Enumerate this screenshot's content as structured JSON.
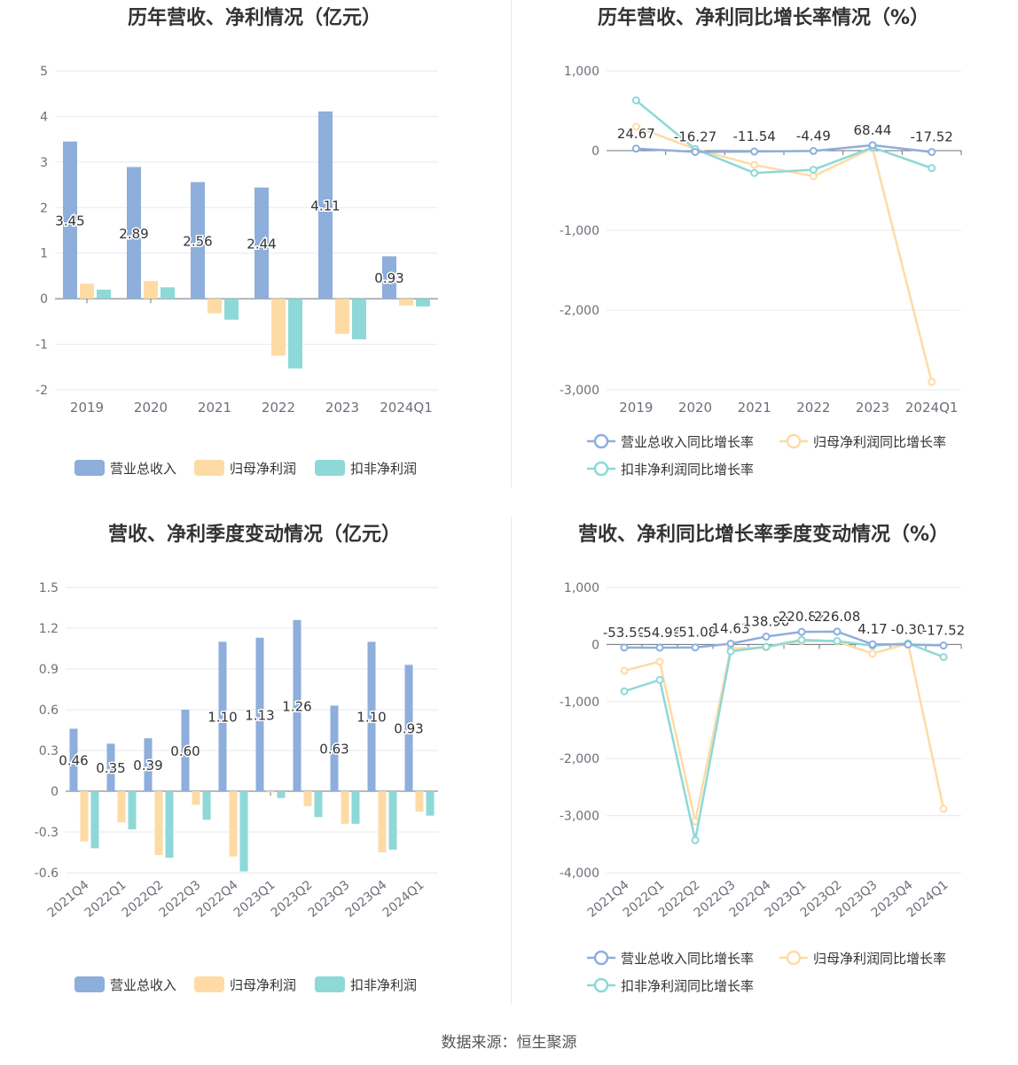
{
  "colors": {
    "revenue": "#8eaedb",
    "parent_profit": "#fedba5",
    "deducted_profit": "#8ed8d8",
    "grid": "#e6e9f0",
    "axis_text": "#6e7079",
    "label_text": "#333333"
  },
  "source": "数据来源：恒生聚源",
  "legend_bar": [
    "营业总收入",
    "归母净利润",
    "扣非净利润"
  ],
  "legend_line": [
    "营业总收入同比增长率",
    "归母净利润同比增长率",
    "扣非净利润同比增长率"
  ],
  "chart_data": [
    {
      "type": "bar",
      "title": "历年营收、净利情况（亿元）",
      "categories": [
        "2019",
        "2020",
        "2021",
        "2022",
        "2023",
        "2024Q1"
      ],
      "ylim": [
        -2,
        5
      ],
      "yticks": [
        "5",
        "4",
        "3",
        "2",
        "1",
        "0",
        "-1",
        "-2"
      ],
      "grid": true,
      "legend_position": "bottom",
      "series": [
        {
          "name": "营业总收入",
          "values": [
            3.45,
            2.89,
            2.56,
            2.44,
            4.11,
            0.93
          ],
          "labels": [
            "3.45",
            "2.89",
            "2.56",
            "2.44",
            "4.11",
            "0.93"
          ]
        },
        {
          "name": "归母净利润",
          "values": [
            0.33,
            0.39,
            -0.32,
            -1.25,
            -0.77,
            -0.15
          ]
        },
        {
          "name": "扣非净利润",
          "values": [
            0.2,
            0.25,
            -0.46,
            -1.53,
            -0.89,
            -0.17
          ]
        }
      ]
    },
    {
      "type": "line",
      "title": "历年营收、净利同比增长率情况（%）",
      "categories": [
        "2019",
        "2020",
        "2021",
        "2022",
        "2023",
        "2024Q1"
      ],
      "ylim": [
        -3000,
        1000
      ],
      "yticks": [
        "1,000",
        "0",
        "-1,000",
        "-2,000",
        "-3,000"
      ],
      "grid": true,
      "legend_position": "bottom",
      "series": [
        {
          "name": "营业总收入同比增长率",
          "values": [
            24.67,
            -16.27,
            -11.54,
            -4.49,
            68.44,
            -17.52
          ],
          "labels": [
            "24.67",
            "-16.27",
            "-11.54",
            "-4.49",
            "68.44",
            "-17.52"
          ]
        },
        {
          "name": "归母净利润同比增长率",
          "values": [
            300,
            20,
            -180,
            -320,
            30,
            -2900
          ]
        },
        {
          "name": "扣非净利润同比增长率",
          "values": [
            630,
            20,
            -280,
            -240,
            40,
            -220
          ]
        }
      ]
    },
    {
      "type": "bar",
      "title": "营收、净利季度变动情况（亿元）",
      "categories": [
        "2021Q4",
        "2022Q1",
        "2022Q2",
        "2022Q3",
        "2022Q4",
        "2023Q1",
        "2023Q2",
        "2023Q3",
        "2023Q4",
        "2024Q1"
      ],
      "ylim": [
        -0.6,
        1.5
      ],
      "yticks": [
        "1.5",
        "1.2",
        "0.9",
        "0.6",
        "0.3",
        "0",
        "-0.3",
        "-0.6"
      ],
      "grid": true,
      "legend_position": "bottom",
      "series": [
        {
          "name": "营业总收入",
          "values": [
            0.46,
            0.35,
            0.39,
            0.6,
            1.1,
            1.13,
            1.26,
            0.63,
            1.1,
            0.93
          ],
          "labels": [
            "0.46",
            "0.35",
            "0.39",
            "0.60",
            "1.10",
            "1.13",
            "1.26",
            "0.63",
            "1.10",
            "0.93"
          ]
        },
        {
          "name": "归母净利润",
          "values": [
            -0.37,
            -0.23,
            -0.47,
            -0.1,
            -0.48,
            -0.01,
            -0.11,
            -0.24,
            -0.45,
            -0.15
          ]
        },
        {
          "name": "扣非净利润",
          "values": [
            -0.42,
            -0.28,
            -0.49,
            -0.21,
            -0.59,
            -0.05,
            -0.19,
            -0.24,
            -0.43,
            -0.18
          ]
        }
      ]
    },
    {
      "type": "line",
      "title": "营收、净利同比增长率季度变动情况（%）",
      "categories": [
        "2021Q4",
        "2022Q1",
        "2022Q2",
        "2022Q3",
        "2022Q4",
        "2023Q1",
        "2023Q2",
        "2023Q3",
        "2023Q4",
        "2024Q1"
      ],
      "ylim": [
        -4000,
        1000
      ],
      "yticks": [
        "1,000",
        "0",
        "-1,000",
        "-2,000",
        "-3,000",
        "-4,000"
      ],
      "grid": true,
      "legend_position": "bottom",
      "series": [
        {
          "name": "营业总收入同比增长率",
          "values": [
            -53.5,
            -54.96,
            -51.08,
            14.63,
            138.9,
            220.82,
            226.08,
            4.17,
            -0.3,
            -17.52
          ],
          "labels": [
            "-53.50",
            "-54.96",
            "-51.08",
            "14.63",
            "138.90",
            "220.82",
            "226.08",
            "4.17",
            "-0.30",
            "-17.52"
          ]
        },
        {
          "name": "归母净利润同比增长率",
          "values": [
            -460,
            -300,
            -3100,
            -70,
            -50,
            60,
            50,
            -160,
            20,
            -2880
          ]
        },
        {
          "name": "扣非净利润同比增长率",
          "values": [
            -820,
            -620,
            -3430,
            -120,
            -40,
            80,
            60,
            -20,
            20,
            -220
          ]
        }
      ]
    }
  ]
}
